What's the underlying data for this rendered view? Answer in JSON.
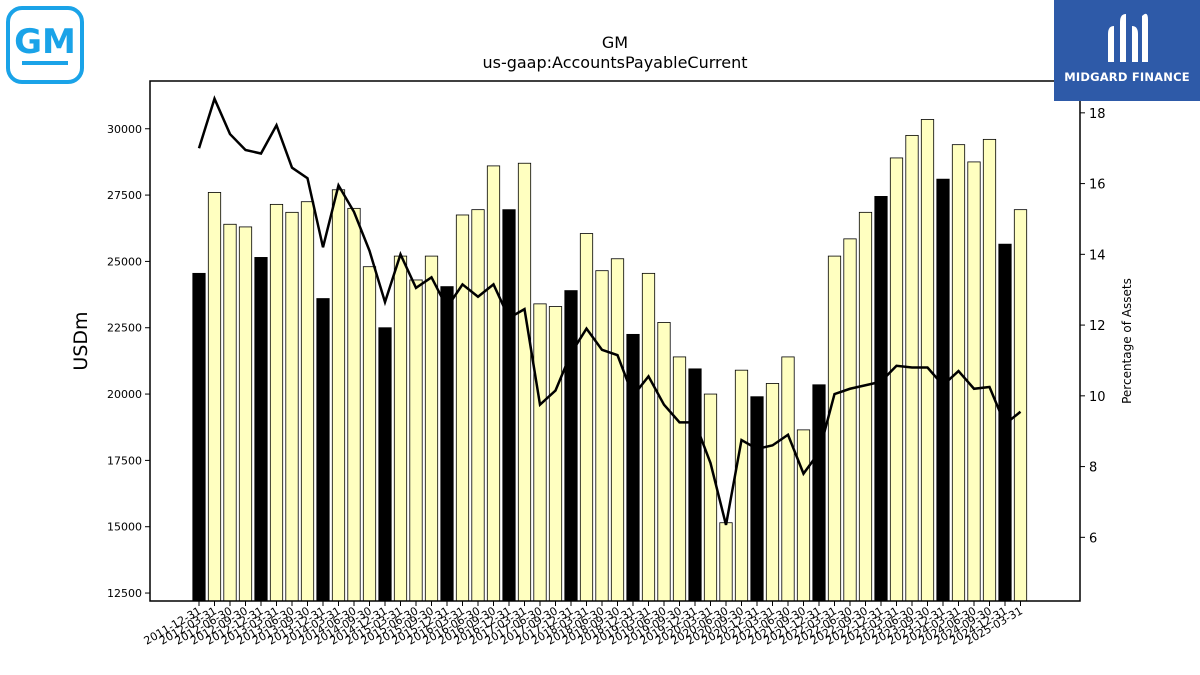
{
  "brand": {
    "company_logo": "GM",
    "watermark_text": "MIDGARD FINANCE",
    "watermark_color": "#2e5aa8",
    "company_logo_color": "#1aa3e8"
  },
  "chart_data": {
    "type": "bar",
    "title": "GM",
    "subtitle": "us-gaap:AccountsPayableCurrent",
    "ylabel": "USDm",
    "y2label": "Percentage of Assets",
    "ylim": [
      12200,
      31800
    ],
    "y2lim": [
      4.2,
      18.9
    ],
    "yticks": [
      12500,
      15000,
      17500,
      20000,
      22500,
      25000,
      27500,
      30000
    ],
    "y2ticks": [
      6,
      8,
      10,
      12,
      14,
      16,
      18
    ],
    "colors": {
      "q4_bar": "#000000",
      "other_bar": "#ffffc0",
      "line": "#000000"
    },
    "categories": [
      "2011-12-31",
      "2012-03-31",
      "2012-06-30",
      "2012-09-30",
      "2012-12-31",
      "2013-03-31",
      "2013-06-30",
      "2013-09-30",
      "2013-12-31",
      "2014-03-31",
      "2014-06-30",
      "2014-09-30",
      "2014-12-31",
      "2015-03-31",
      "2015-06-30",
      "2015-09-30",
      "2015-12-31",
      "2016-03-31",
      "2016-06-30",
      "2016-09-30",
      "2016-12-31",
      "2017-03-31",
      "2017-06-30",
      "2017-09-30",
      "2017-12-31",
      "2018-03-31",
      "2018-06-30",
      "2018-09-30",
      "2018-12-31",
      "2019-03-31",
      "2019-06-30",
      "2019-09-30",
      "2019-12-31",
      "2020-03-31",
      "2020-06-30",
      "2020-09-30",
      "2020-12-31",
      "2021-03-31",
      "2021-06-30",
      "2021-09-30",
      "2021-12-31",
      "2022-03-31",
      "2022-06-30",
      "2022-09-30",
      "2022-12-31",
      "2023-03-31",
      "2023-06-30",
      "2023-09-30",
      "2023-12-31",
      "2024-03-31",
      "2024-06-30",
      "2024-09-30",
      "2024-12-31",
      "2025-03-31"
    ],
    "series": [
      {
        "values": [
          24550,
          27600,
          26400,
          26300,
          25150,
          27150,
          26850,
          27250,
          23600,
          27700,
          27000,
          24800,
          22500,
          25200,
          24300,
          25200,
          24050,
          26750,
          26950,
          28600,
          26950,
          28700,
          23400,
          23300,
          23900,
          26050,
          24650,
          25100,
          22250,
          24550,
          22700,
          21400,
          20950,
          20000,
          15150,
          20900,
          19900,
          20400,
          21400,
          18650,
          20350,
          25200,
          25850,
          26850,
          27450,
          28900,
          29750,
          30350,
          28100,
          29400,
          28750,
          29600,
          25650,
          26950
        ]
      },
      {
        "axis": "right",
        "values": [
          17.0,
          18.4,
          17.4,
          16.95,
          16.85,
          17.65,
          16.45,
          16.15,
          14.2,
          15.95,
          15.2,
          14.1,
          12.65,
          14.0,
          13.05,
          13.35,
          12.5,
          13.15,
          12.8,
          13.15,
          12.2,
          12.45,
          9.75,
          10.15,
          11.2,
          11.9,
          11.3,
          11.15,
          10.0,
          10.55,
          9.75,
          9.25,
          9.25,
          8.1,
          6.35,
          8.75,
          8.5,
          8.6,
          8.9,
          7.8,
          8.4,
          10.05,
          10.2,
          10.3,
          10.4,
          10.85,
          10.8,
          10.8,
          10.3,
          10.7,
          10.2,
          10.25,
          9.2,
          9.55
        ]
      }
    ]
  }
}
